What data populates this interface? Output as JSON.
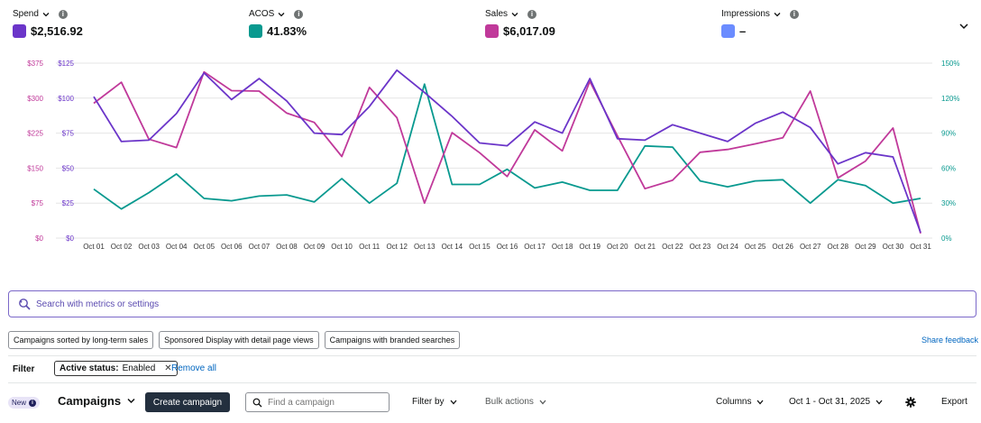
{
  "metrics": [
    {
      "label": "Spend",
      "value": "$2,516.92",
      "color": "#6b35c9"
    },
    {
      "label": "ACOS",
      "value": "41.83%",
      "color": "#08998f"
    },
    {
      "label": "Sales",
      "value": "$6,017.09",
      "color": "#c0399a"
    },
    {
      "label": "Impressions",
      "value": "–",
      "color": "#6b8cff"
    }
  ],
  "chart_data": {
    "type": "line",
    "categories": [
      "Oct 01",
      "Oct 02",
      "Oct 03",
      "Oct 04",
      "Oct 05",
      "Oct 06",
      "Oct 07",
      "Oct 08",
      "Oct 09",
      "Oct 10",
      "Oct 11",
      "Oct 12",
      "Oct 13",
      "Oct 14",
      "Oct 15",
      "Oct 16",
      "Oct 17",
      "Oct 18",
      "Oct 19",
      "Oct 20",
      "Oct 21",
      "Oct 22",
      "Oct 23",
      "Oct 24",
      "Oct 25",
      "Oct 26",
      "Oct 27",
      "Oct 28",
      "Oct 29",
      "Oct 30",
      "Oct 31"
    ],
    "axes": {
      "left_sales": {
        "ticks": [
          "$0",
          "$75",
          "$150",
          "$225",
          "$300",
          "$375"
        ],
        "range": [
          0,
          375
        ],
        "color": "#c0399a"
      },
      "left_spend": {
        "ticks": [
          "$0",
          "$25",
          "$50",
          "$75",
          "$100",
          "$125"
        ],
        "range": [
          0,
          125
        ],
        "color": "#6b35c9"
      },
      "right_acos": {
        "ticks": [
          "0%",
          "30%",
          "60%",
          "90%",
          "120%",
          "150%"
        ],
        "range": [
          0,
          150
        ],
        "color": "#08998f"
      }
    },
    "series": [
      {
        "name": "Spend",
        "axis": "left_spend",
        "color": "#6b35c9",
        "values": [
          101,
          69,
          70,
          89,
          118,
          99,
          114,
          98,
          75,
          74,
          94,
          120,
          104,
          87,
          68,
          66,
          83,
          75,
          114,
          71,
          70,
          81,
          75,
          69,
          82,
          90,
          79,
          53,
          61,
          58,
          4
        ]
      },
      {
        "name": "Sales",
        "axis": "left_sales",
        "color": "#c0399a",
        "values": [
          289,
          334,
          212,
          194,
          356,
          316,
          315,
          268,
          248,
          175,
          323,
          258,
          75,
          226,
          183,
          132,
          232,
          187,
          336,
          219,
          106,
          124,
          184,
          190,
          202,
          215,
          315,
          129,
          165,
          236,
          10
        ]
      },
      {
        "name": "ACOS",
        "axis": "right_acos",
        "color": "#08998f",
        "values": [
          42,
          25,
          39,
          55,
          34,
          32,
          36,
          37,
          31,
          51,
          30,
          47,
          132,
          46,
          46,
          59,
          43,
          48,
          41,
          41,
          79,
          78,
          49,
          44,
          49,
          50,
          30,
          50,
          45,
          30,
          34
        ]
      }
    ],
    "grid": true,
    "legend": "top"
  },
  "search": {
    "placeholder": "Search with metrics or settings"
  },
  "chips": [
    "Campaigns sorted by long-term sales",
    "Sponsored Display with detail page views",
    "Campaigns with branded searches"
  ],
  "share_feedback": "Share feedback",
  "filter": {
    "label": "Filter",
    "pill_key": "Active status:",
    "pill_value": "Enabled",
    "remove_all": "Remove all"
  },
  "toolbar": {
    "new_badge": "New",
    "title": "Campaigns",
    "create": "Create campaign",
    "find_placeholder": "Find a campaign",
    "filter_by": "Filter by",
    "bulk_actions": "Bulk actions",
    "columns": "Columns",
    "date_range": "Oct 1 - Oct 31, 2025",
    "export": "Export"
  }
}
